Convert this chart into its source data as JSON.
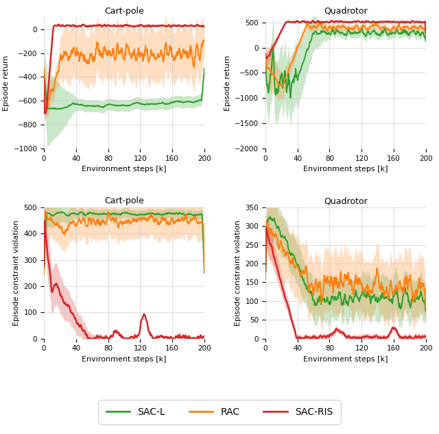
{
  "subplots": [
    {
      "title": "Cart-pole",
      "xlabel": "Environment steps [k]",
      "ylabel": "Episode return",
      "xlim": [
        0,
        200
      ],
      "ylim": [
        -1000,
        100
      ],
      "xticks": [
        0,
        40,
        80,
        120,
        160,
        200
      ],
      "row": 0,
      "col": 0
    },
    {
      "title": "Quadrotor",
      "xlabel": "Environment steps [k]",
      "ylabel": "Episode return",
      "xlim": [
        0,
        200
      ],
      "ylim": [
        -2000,
        600
      ],
      "xticks": [
        0,
        40,
        80,
        120,
        160,
        200
      ],
      "row": 0,
      "col": 1
    },
    {
      "title": "Cart-pole",
      "xlabel": "Environment steps [k]",
      "ylabel": "Episode constraint violation",
      "xlim": [
        0,
        200
      ],
      "ylim": [
        0,
        500
      ],
      "xticks": [
        0,
        40,
        80,
        120,
        160,
        200
      ],
      "row": 1,
      "col": 0
    },
    {
      "title": "Quadrotor",
      "xlabel": "Environment steps [k]",
      "ylabel": "Episode constraint violation",
      "xlim": [
        0,
        200
      ],
      "ylim": [
        0,
        350
      ],
      "xticks": [
        0,
        40,
        80,
        120,
        160,
        200
      ],
      "row": 1,
      "col": 1
    }
  ],
  "colors": {
    "SAC-L": "#2ca02c",
    "RAC": "#ff7f0e",
    "SAC-RIS": "#d62728"
  },
  "alpha_fill": 0.25,
  "legend_labels": [
    "SAC-L",
    "RAC",
    "SAC-RIS"
  ],
  "background_color": "#ffffff"
}
